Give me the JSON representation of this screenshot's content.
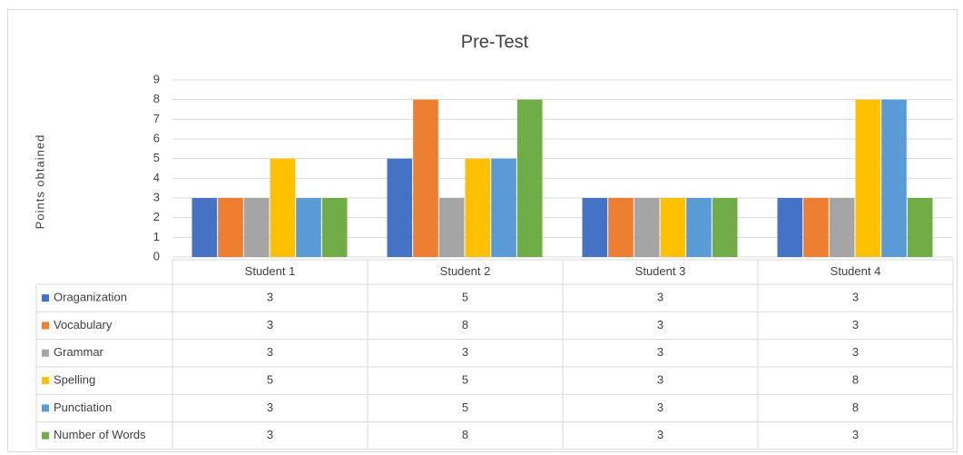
{
  "chart_data": {
    "type": "bar",
    "title": "Pre-Test",
    "y_label": "Points obtained",
    "categories": [
      "Student 1",
      "Student 2",
      "Student 3",
      "Student 4"
    ],
    "series": [
      {
        "name": "Oraganization",
        "color": "#4472c4",
        "values": [
          3,
          5,
          3,
          3
        ]
      },
      {
        "name": "Vocabulary",
        "color": "#ed7d31",
        "values": [
          3,
          8,
          3,
          3
        ]
      },
      {
        "name": "Grammar",
        "color": "#a5a5a5",
        "values": [
          3,
          3,
          3,
          3
        ]
      },
      {
        "name": "Spelling",
        "color": "#ffc000",
        "values": [
          5,
          5,
          3,
          8
        ]
      },
      {
        "name": "Punctiation",
        "color": "#5b9bd5",
        "values": [
          3,
          5,
          3,
          8
        ]
      },
      {
        "name": "Number of Words",
        "color": "#70ad47",
        "values": [
          3,
          8,
          3,
          3
        ]
      }
    ],
    "ylim": [
      0,
      9
    ],
    "yticks": [
      0,
      1,
      2,
      3,
      4,
      5,
      6,
      7,
      8,
      9
    ],
    "grid": true,
    "data_table": true
  }
}
